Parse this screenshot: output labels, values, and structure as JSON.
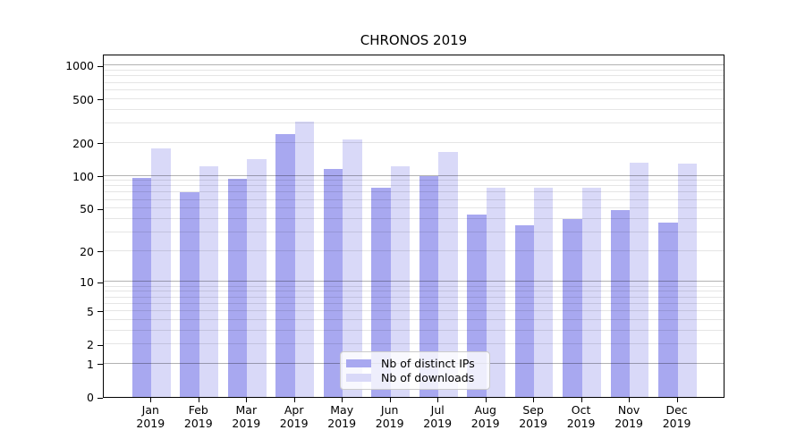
{
  "chart_data": {
    "type": "bar",
    "title": "CHRONOS 2019",
    "x_months": [
      "Jan",
      "Feb",
      "Mar",
      "Apr",
      "May",
      "Jun",
      "Jul",
      "Aug",
      "Sep",
      "Oct",
      "Nov",
      "Dec"
    ],
    "x_year": "2019",
    "series": [
      {
        "name": "Nb of distinct IPs",
        "color": "#a8a8f0",
        "values": [
          95,
          70,
          93,
          238,
          115,
          78,
          99,
          44,
          35,
          40,
          48,
          37
        ]
      },
      {
        "name": "Nb of downloads",
        "color": "#d9d9f8",
        "values": [
          178,
          122,
          142,
          310,
          212,
          122,
          165,
          78,
          77,
          77,
          131,
          129
        ]
      }
    ],
    "xlabel": "",
    "ylabel": "",
    "yscale": "log1p",
    "ylim": [
      0,
      1285
    ],
    "ytick_labels": [
      1000,
      500,
      200,
      100,
      50,
      20,
      10,
      5,
      2,
      1,
      0
    ],
    "major_gridlines": [
      1,
      10,
      100,
      1000
    ],
    "minor_gridlines": [
      2,
      3,
      4,
      5,
      6,
      7,
      8,
      9,
      20,
      30,
      40,
      50,
      60,
      70,
      80,
      90,
      200,
      300,
      400,
      500,
      600,
      700,
      800,
      900
    ],
    "grid": true,
    "legend_position": "lower center"
  },
  "colors": {
    "background": "#ffffff",
    "spine": "#000000",
    "grid_major": "#b4b4b4",
    "grid_minor": "#e6e6e6",
    "legend_border": "#cccccc",
    "bar_distinct_ips": "#a8a8f0",
    "bar_downloads": "#d9d9f8"
  }
}
